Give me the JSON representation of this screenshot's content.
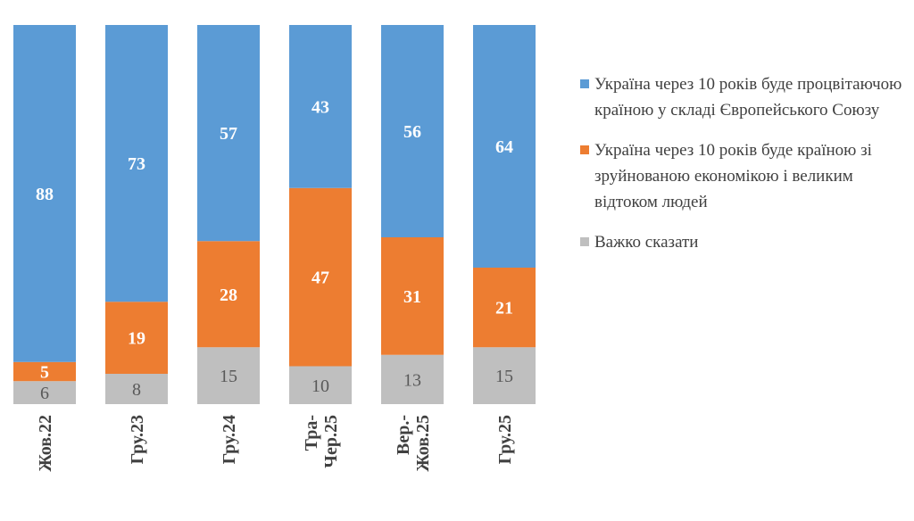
{
  "chart_data": {
    "type": "bar",
    "stacked": true,
    "categories": [
      [
        "Жов.22"
      ],
      [
        "Гру.23"
      ],
      [
        "Гру.24"
      ],
      [
        "Тра-",
        "Чер.25"
      ],
      [
        "Вер.-",
        "Жов.25"
      ],
      [
        "Гру.25"
      ]
    ],
    "series": [
      {
        "name": "Україна через 10 років буде процвітаючою країною у складі Європейського Союзу",
        "color": "#5B9BD5",
        "values": [
          88,
          73,
          57,
          43,
          56,
          64
        ]
      },
      {
        "name": "Україна через 10 років буде країною зі зруйнованою економікою і великим відтоком людей",
        "color": "#ED7D31",
        "values": [
          5,
          19,
          28,
          47,
          31,
          21
        ]
      },
      {
        "name": "Важко сказати",
        "color": "#BFBFBF",
        "values": [
          6,
          8,
          15,
          10,
          13,
          15
        ]
      }
    ],
    "ylim": [
      0,
      100
    ],
    "grid": false,
    "legend_position": "right"
  }
}
